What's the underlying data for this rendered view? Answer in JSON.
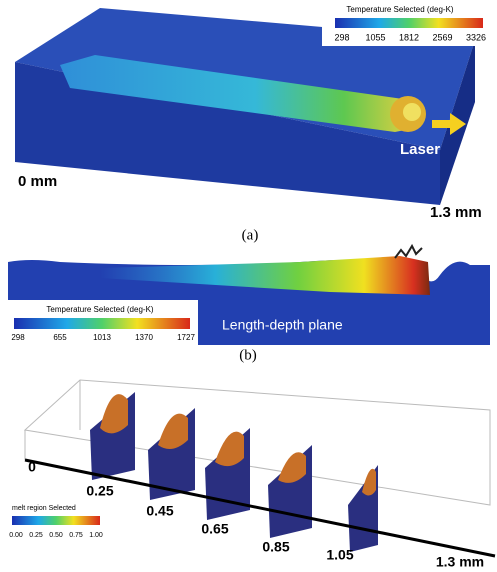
{
  "panel_a": {
    "colorbar_title": "Temperature Selected (deg-K)",
    "colorbar_ticks": [
      "298",
      "1055",
      "1812",
      "2569",
      "3326"
    ],
    "laser_label": "Laser",
    "start_label": "0 mm",
    "end_label": "1.3 mm",
    "caption": "(a)"
  },
  "panel_b": {
    "colorbar_title": "Temperature Selected (deg-K)",
    "colorbar_ticks": [
      "298",
      "655",
      "1013",
      "1370",
      "1727"
    ],
    "plane_label": "Length-depth plane",
    "caption": "(b)"
  },
  "panel_c": {
    "colorbar_title": "melt region Selected",
    "colorbar_ticks": [
      "0.00",
      "0.25",
      "0.50",
      "0.75",
      "1.00"
    ],
    "positions": [
      "0",
      "0.25",
      "0.45",
      "0.65",
      "0.85",
      "1.05",
      "1.3 mm"
    ]
  }
}
